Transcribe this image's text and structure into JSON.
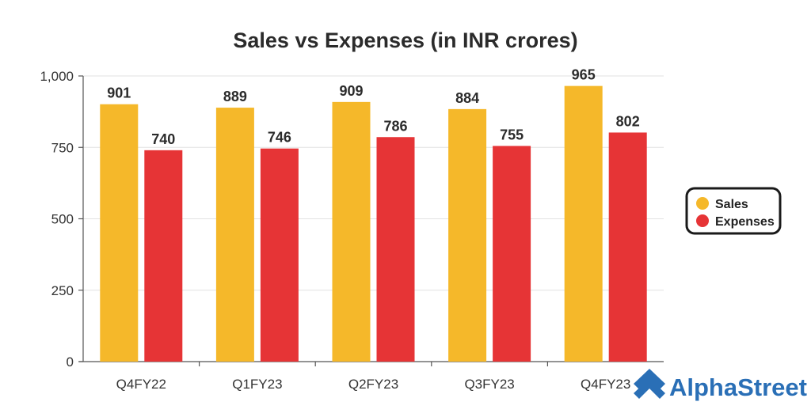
{
  "chart_data": {
    "type": "bar",
    "title": "Sales vs Expenses (in INR crores)",
    "xlabel": "",
    "ylabel": "",
    "categories": [
      "Q4FY22",
      "Q1FY23",
      "Q2FY23",
      "Q3FY23",
      "Q4FY23"
    ],
    "series": [
      {
        "name": "Sales",
        "values": [
          901,
          889,
          909,
          884,
          965
        ],
        "color": "#f5b82a"
      },
      {
        "name": "Expenses",
        "values": [
          740,
          746,
          786,
          755,
          802
        ],
        "color": "#e63436"
      }
    ],
    "ylim": [
      0,
      1000
    ],
    "yticks": [
      0,
      250,
      500,
      750,
      1000
    ],
    "ytick_labels": [
      "0",
      "250",
      "500",
      "750",
      "1,000"
    ],
    "grid": true,
    "legend_position": "right"
  },
  "brand": {
    "name": "AlphaStreet",
    "icon": "alphastreet-logo-icon",
    "color": "#2a6fb6"
  }
}
